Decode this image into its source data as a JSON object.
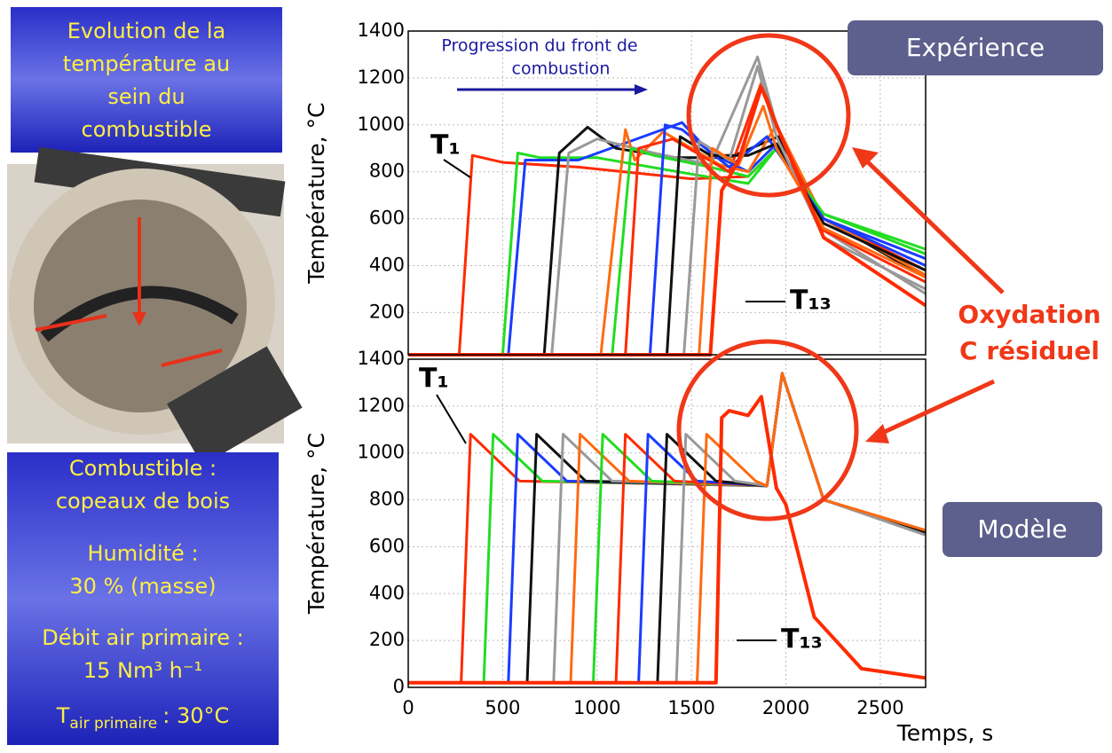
{
  "sidebar": {
    "title": [
      "Evolution de la",
      "température au",
      "sein du",
      "combustible"
    ],
    "fuel": [
      "Combustible :",
      "copeaux de bois"
    ],
    "humidity": [
      "Humidité :",
      "30 % (masse)"
    ],
    "airflow": [
      "Débit air primaire :",
      "15 Nm³ h⁻¹"
    ],
    "air_temp": {
      "symbol": "T",
      "subscript": "air primaire",
      "value": ": 30°C"
    }
  },
  "callout": [
    "Oxydation",
    "C résiduel"
  ],
  "chart_data": [
    {
      "type": "line",
      "title": "Expérience",
      "ylabel": "Température, °C",
      "xlim": [
        0,
        2740
      ],
      "xticks": [
        0,
        500,
        1000,
        1500,
        2000,
        2500
      ],
      "xtick_labels": false,
      "ylim": [
        20,
        1400
      ],
      "yticks": [
        200,
        400,
        600,
        800,
        1000,
        1200,
        1400
      ],
      "grid": true,
      "progression": [
        "Progression du front de",
        "combustion"
      ],
      "t_first": "T₁",
      "t_last": "T₁₃",
      "series": [
        {
          "color": "#ff2a00",
          "x": [
            0,
            270,
            340,
            500,
            900,
            1500,
            1800,
            1950,
            2200,
            2740
          ],
          "values": [
            20,
            20,
            870,
            840,
            820,
            770,
            780,
            900,
            600,
            380
          ]
        },
        {
          "color": "#22dd22",
          "x": [
            0,
            500,
            580,
            700,
            1000,
            1500,
            1800,
            1950,
            2200,
            2740
          ],
          "values": [
            20,
            20,
            880,
            860,
            860,
            790,
            750,
            900,
            620,
            470
          ]
        },
        {
          "color": "#1a3cff",
          "x": [
            0,
            530,
            620,
            900,
            1450,
            1600,
            1800,
            1950,
            2200,
            2740
          ],
          "values": [
            20,
            20,
            850,
            850,
            1010,
            880,
            800,
            920,
            600,
            430
          ]
        },
        {
          "color": "#111111",
          "x": [
            0,
            720,
            800,
            950,
            1100,
            1400,
            1700,
            1960,
            2200,
            2740
          ],
          "values": [
            20,
            20,
            880,
            990,
            900,
            860,
            860,
            950,
            600,
            350
          ]
        },
        {
          "color": "#999999",
          "x": [
            0,
            760,
            850,
            1000,
            1300,
            1600,
            1850,
            1950,
            2200,
            2740
          ],
          "values": [
            20,
            20,
            880,
            940,
            880,
            830,
            1290,
            1000,
            550,
            280
          ]
        },
        {
          "color": "#ff6a10",
          "x": [
            0,
            1020,
            1150,
            1200,
            1350,
            1500,
            1650,
            1800,
            1950,
            2200,
            2740
          ],
          "values": [
            20,
            20,
            980,
            850,
            970,
            900,
            830,
            800,
            1000,
            600,
            360
          ]
        },
        {
          "color": "#22dd22",
          "x": [
            0,
            1080,
            1180,
            1300,
            1600,
            1800,
            1950,
            2200,
            2740
          ],
          "values": [
            20,
            20,
            900,
            870,
            820,
            780,
            900,
            620,
            450
          ]
        },
        {
          "color": "#ff2a00",
          "x": [
            0,
            1150,
            1220,
            1400,
            1700,
            1870,
            1950,
            2200,
            2740
          ],
          "values": [
            20,
            20,
            900,
            940,
            800,
            1180,
            1000,
            550,
            330
          ]
        },
        {
          "color": "#1a3cff",
          "x": [
            0,
            1280,
            1360,
            1450,
            1700,
            1900,
            2200,
            2740
          ],
          "values": [
            20,
            20,
            1000,
            980,
            820,
            950,
            600,
            400
          ]
        },
        {
          "color": "#111111",
          "x": [
            0,
            1370,
            1440,
            1600,
            1800,
            1950,
            2200,
            2740
          ],
          "values": [
            20,
            20,
            950,
            870,
            870,
            920,
            580,
            380
          ]
        },
        {
          "color": "#999999",
          "x": [
            0,
            1460,
            1540,
            1700,
            1850,
            1950,
            2200,
            2740
          ],
          "values": [
            20,
            20,
            930,
            850,
            1250,
            950,
            520,
            300
          ]
        },
        {
          "color": "#ff6a10",
          "x": [
            0,
            1540,
            1610,
            1750,
            1880,
            1950,
            2200,
            2740
          ],
          "values": [
            20,
            20,
            900,
            830,
            1080,
            900,
            560,
            350
          ]
        },
        {
          "color": "#ff2a00",
          "x": [
            0,
            1600,
            1660,
            1750,
            1870,
            1950,
            2200,
            2740
          ],
          "values": [
            20,
            20,
            720,
            850,
            1160,
            1000,
            520,
            230
          ]
        }
      ]
    },
    {
      "type": "line",
      "title": "Modèle",
      "ylabel": "Température, °C",
      "xlabel": "Temps, s",
      "xlim": [
        0,
        2740
      ],
      "xticks": [
        0,
        500,
        1000,
        1500,
        2000,
        2500
      ],
      "xtick_labels": true,
      "ylim": [
        0,
        1400
      ],
      "yticks": [
        0,
        200,
        400,
        600,
        800,
        1000,
        1200,
        1400
      ],
      "grid": true,
      "t_first": "T₁",
      "t_last": "T₁₃",
      "series": [
        {
          "color": "#ff2a00",
          "x": [
            0,
            280,
            330,
            590,
            1900,
            1980,
            2200,
            2740
          ],
          "values": [
            20,
            20,
            1080,
            880,
            860,
            1340,
            800,
            660
          ]
        },
        {
          "color": "#22dd22",
          "x": [
            0,
            400,
            450,
            710,
            1900,
            1980,
            2200,
            2740
          ],
          "values": [
            20,
            20,
            1080,
            880,
            860,
            1340,
            800,
            660
          ]
        },
        {
          "color": "#1a3cff",
          "x": [
            0,
            530,
            580,
            840,
            1900,
            1980,
            2200,
            2740
          ],
          "values": [
            20,
            20,
            1080,
            880,
            860,
            1340,
            800,
            660
          ]
        },
        {
          "color": "#111111",
          "x": [
            0,
            630,
            680,
            940,
            1900,
            1980,
            2200,
            2740
          ],
          "values": [
            20,
            20,
            1080,
            880,
            860,
            1340,
            800,
            660
          ]
        },
        {
          "color": "#999999",
          "x": [
            0,
            770,
            820,
            1080,
            1900,
            1980,
            2200,
            2740
          ],
          "values": [
            20,
            20,
            1080,
            880,
            860,
            1340,
            800,
            650
          ]
        },
        {
          "color": "#ff6a10",
          "x": [
            0,
            860,
            910,
            1170,
            1900,
            1980,
            2200,
            2740
          ],
          "values": [
            20,
            20,
            1080,
            880,
            860,
            1340,
            800,
            670
          ]
        },
        {
          "color": "#22dd22",
          "x": [
            0,
            980,
            1030,
            1290,
            1900,
            1980,
            2200,
            2740
          ],
          "values": [
            20,
            20,
            1080,
            880,
            860,
            1340,
            800,
            660
          ]
        },
        {
          "color": "#ff2a00",
          "x": [
            0,
            1100,
            1150,
            1410,
            1900,
            1980,
            2200,
            2740
          ],
          "values": [
            20,
            20,
            1080,
            880,
            860,
            1340,
            800,
            660
          ]
        },
        {
          "color": "#1a3cff",
          "x": [
            0,
            1220,
            1270,
            1530,
            1900,
            1980,
            2200,
            2740
          ],
          "values": [
            20,
            20,
            1080,
            880,
            860,
            1340,
            800,
            660
          ]
        },
        {
          "color": "#111111",
          "x": [
            0,
            1320,
            1370,
            1630,
            1900,
            1980,
            2200,
            2740
          ],
          "values": [
            20,
            20,
            1080,
            880,
            860,
            1340,
            800,
            660
          ]
        },
        {
          "color": "#999999",
          "x": [
            0,
            1420,
            1470,
            1730,
            1900,
            1980,
            2200,
            2740
          ],
          "values": [
            20,
            20,
            1080,
            880,
            860,
            1340,
            800,
            650
          ]
        },
        {
          "color": "#ff6a10",
          "x": [
            0,
            1530,
            1580,
            1840,
            1900,
            1980,
            2200,
            2740
          ],
          "values": [
            20,
            20,
            1080,
            880,
            860,
            1340,
            800,
            670
          ]
        },
        {
          "color": "#ff2a00",
          "x": [
            0,
            1630,
            1660,
            1700,
            1800,
            1870,
            1950,
            2000,
            2150,
            2400,
            2740
          ],
          "values": [
            20,
            20,
            1150,
            1180,
            1160,
            1240,
            850,
            780,
            300,
            80,
            40
          ]
        }
      ]
    }
  ]
}
